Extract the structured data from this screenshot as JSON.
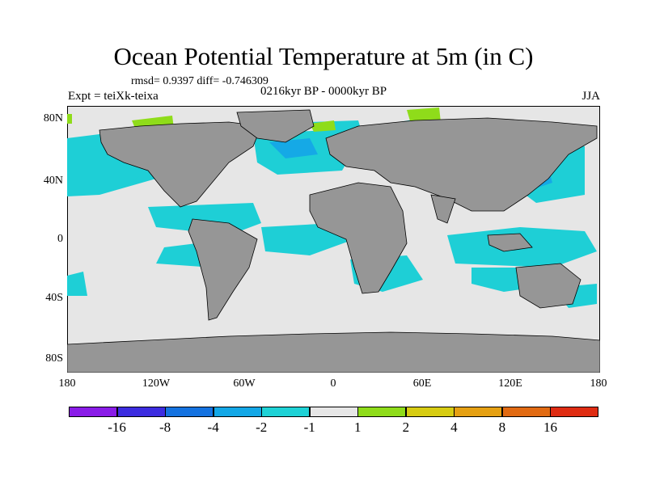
{
  "title": "Ocean Potential Temperature at 5m (in C)",
  "stats": "rmsd= 0.9397 diff= -0.746309",
  "experiment": "Expt = teiXk-teixa",
  "period": "0216kyr BP - 0000kyr BP",
  "season": "JJA",
  "map": {
    "lat_labels": [
      "80N",
      "40N",
      "0",
      "40S",
      "80S"
    ],
    "lon_labels": [
      "180",
      "120W",
      "60W",
      "0",
      "60E",
      "120E",
      "180"
    ],
    "colors": {
      "ocean": "#e6e6e6",
      "land": "#969696",
      "coast": "#000000",
      "cyan": "#1ecfd6",
      "blue": "#15a9e6",
      "green": "#8fdc1a"
    }
  },
  "colorbar": {
    "labels": [
      "-16",
      "-8",
      "-4",
      "-2",
      "-1",
      "1",
      "2",
      "4",
      "8",
      "16"
    ],
    "colors": [
      "#8a1ce8",
      "#3c2ce0",
      "#1472e0",
      "#13a7e6",
      "#1ed2d6",
      "#e6e6e6",
      "#8fdc1a",
      "#d7cc12",
      "#e5a012",
      "#e16a12",
      "#df2c12"
    ]
  }
}
